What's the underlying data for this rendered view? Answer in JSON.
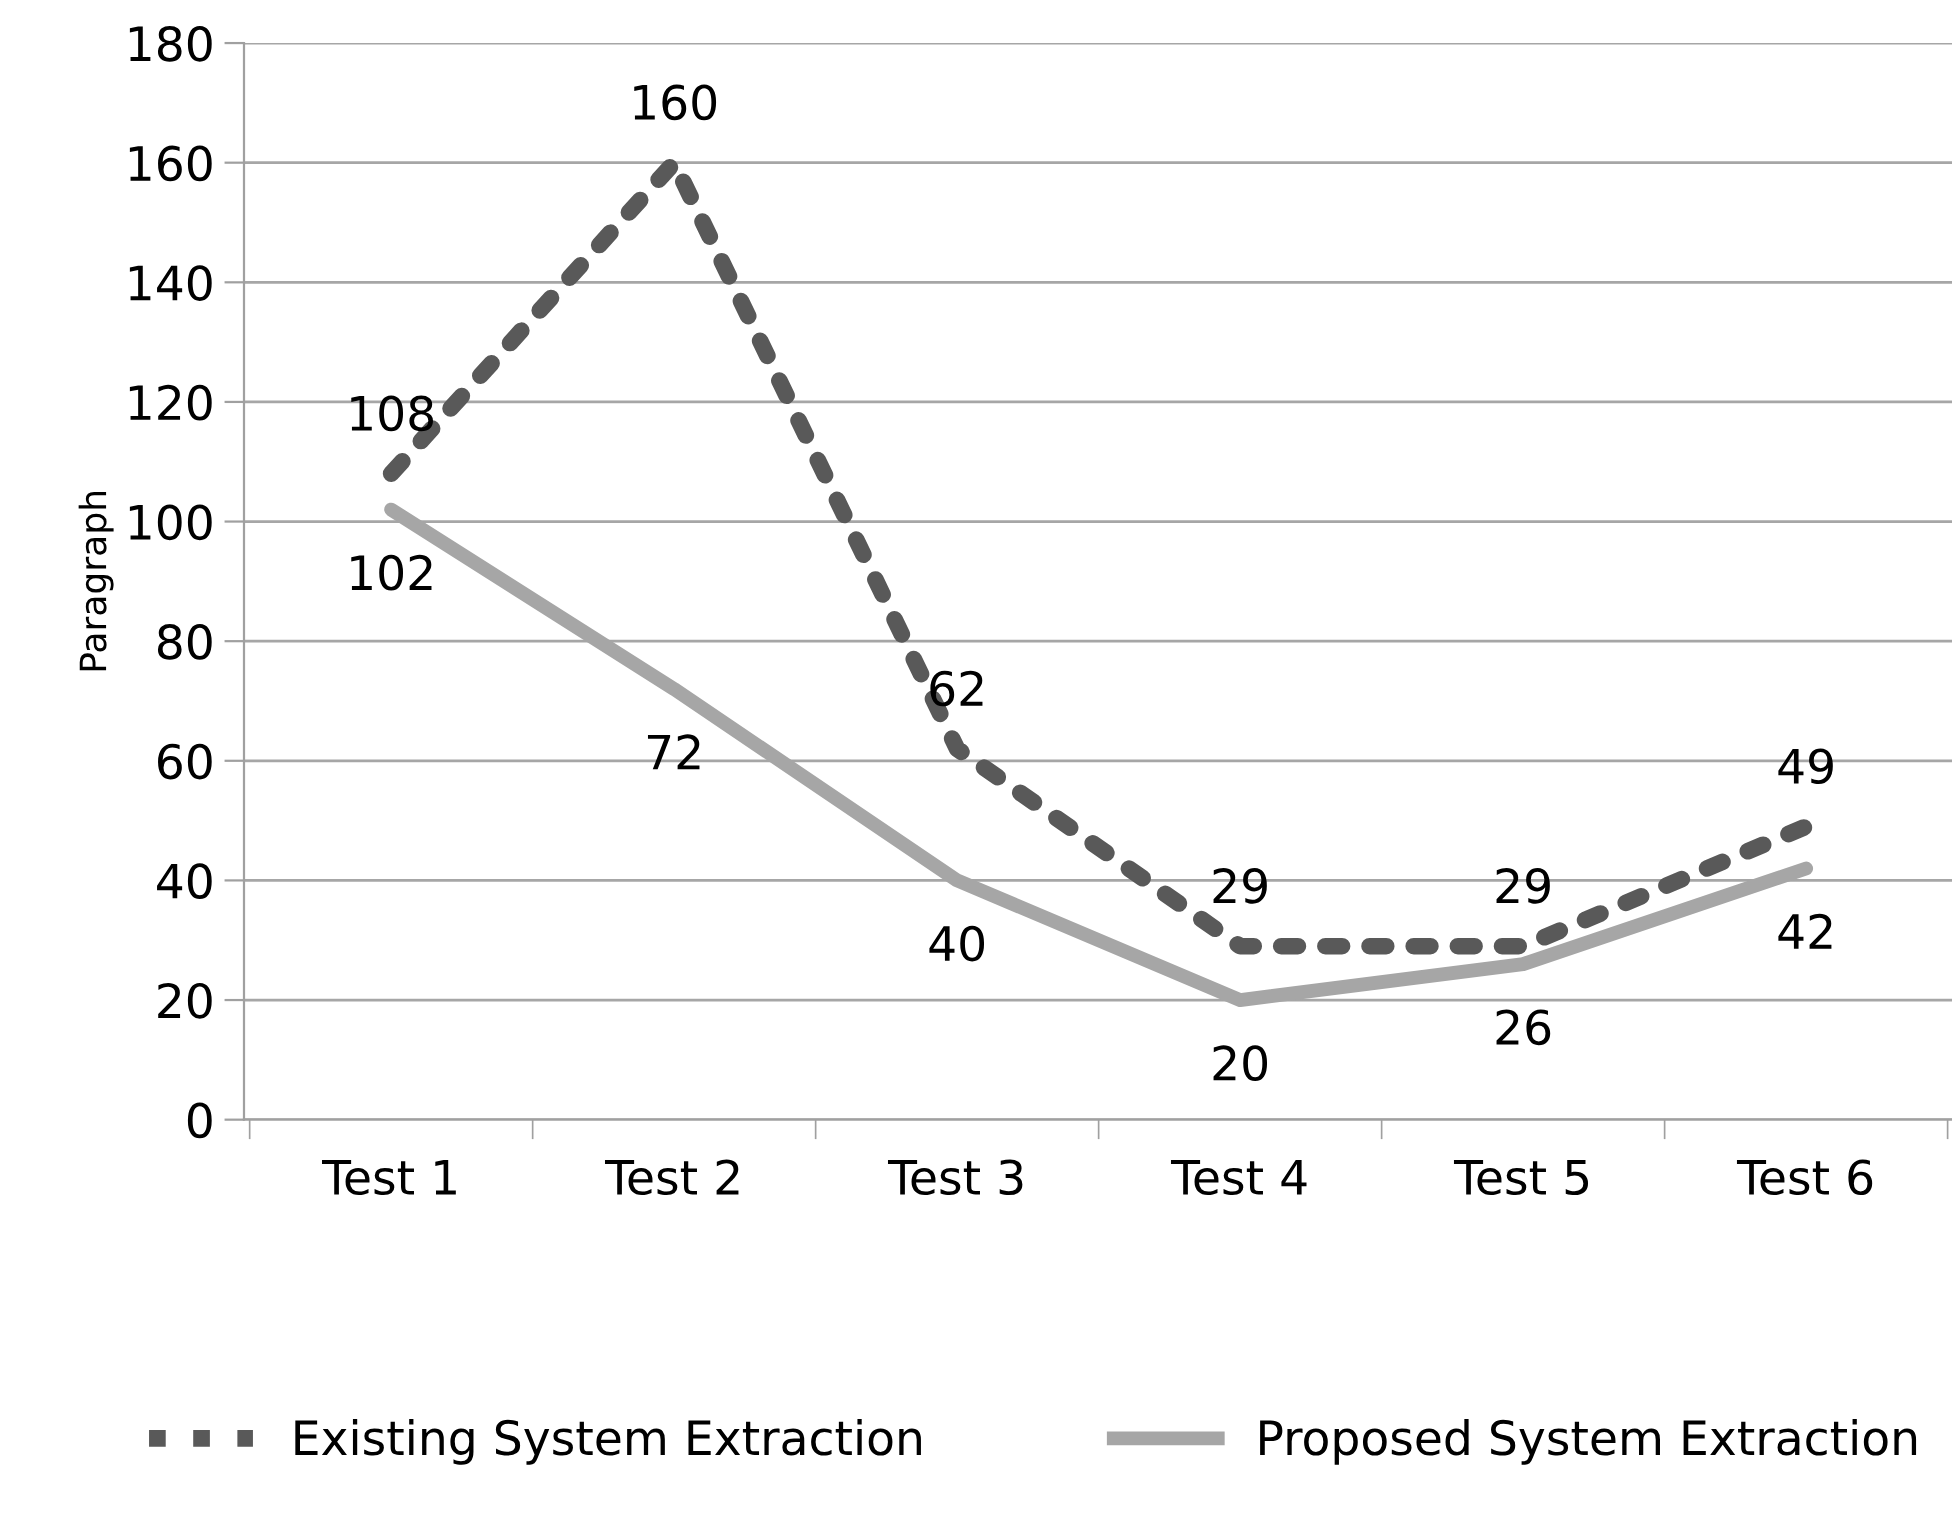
{
  "chart_data": {
    "type": "line",
    "ylabel": "Paragraph",
    "categories": [
      "Test 1",
      "Test 2",
      "Test 3",
      "Test 4",
      "Test 5",
      "Test 6"
    ],
    "series": [
      {
        "name": "Existing System Extraction",
        "color": "#595959",
        "line_style": "dotted",
        "values": [
          108,
          160,
          62,
          29,
          29,
          49
        ]
      },
      {
        "name": "Proposed System Extraction",
        "color": "#a6a6a6",
        "line_style": "solid",
        "values": [
          102,
          72,
          40,
          20,
          26,
          42
        ]
      }
    ],
    "ylim": [
      0,
      180
    ],
    "yticks": [
      0,
      20,
      40,
      60,
      80,
      100,
      120,
      140,
      160,
      180
    ],
    "grid": "y",
    "legend": "bottom",
    "data_labels": true,
    "marker": "none"
  }
}
